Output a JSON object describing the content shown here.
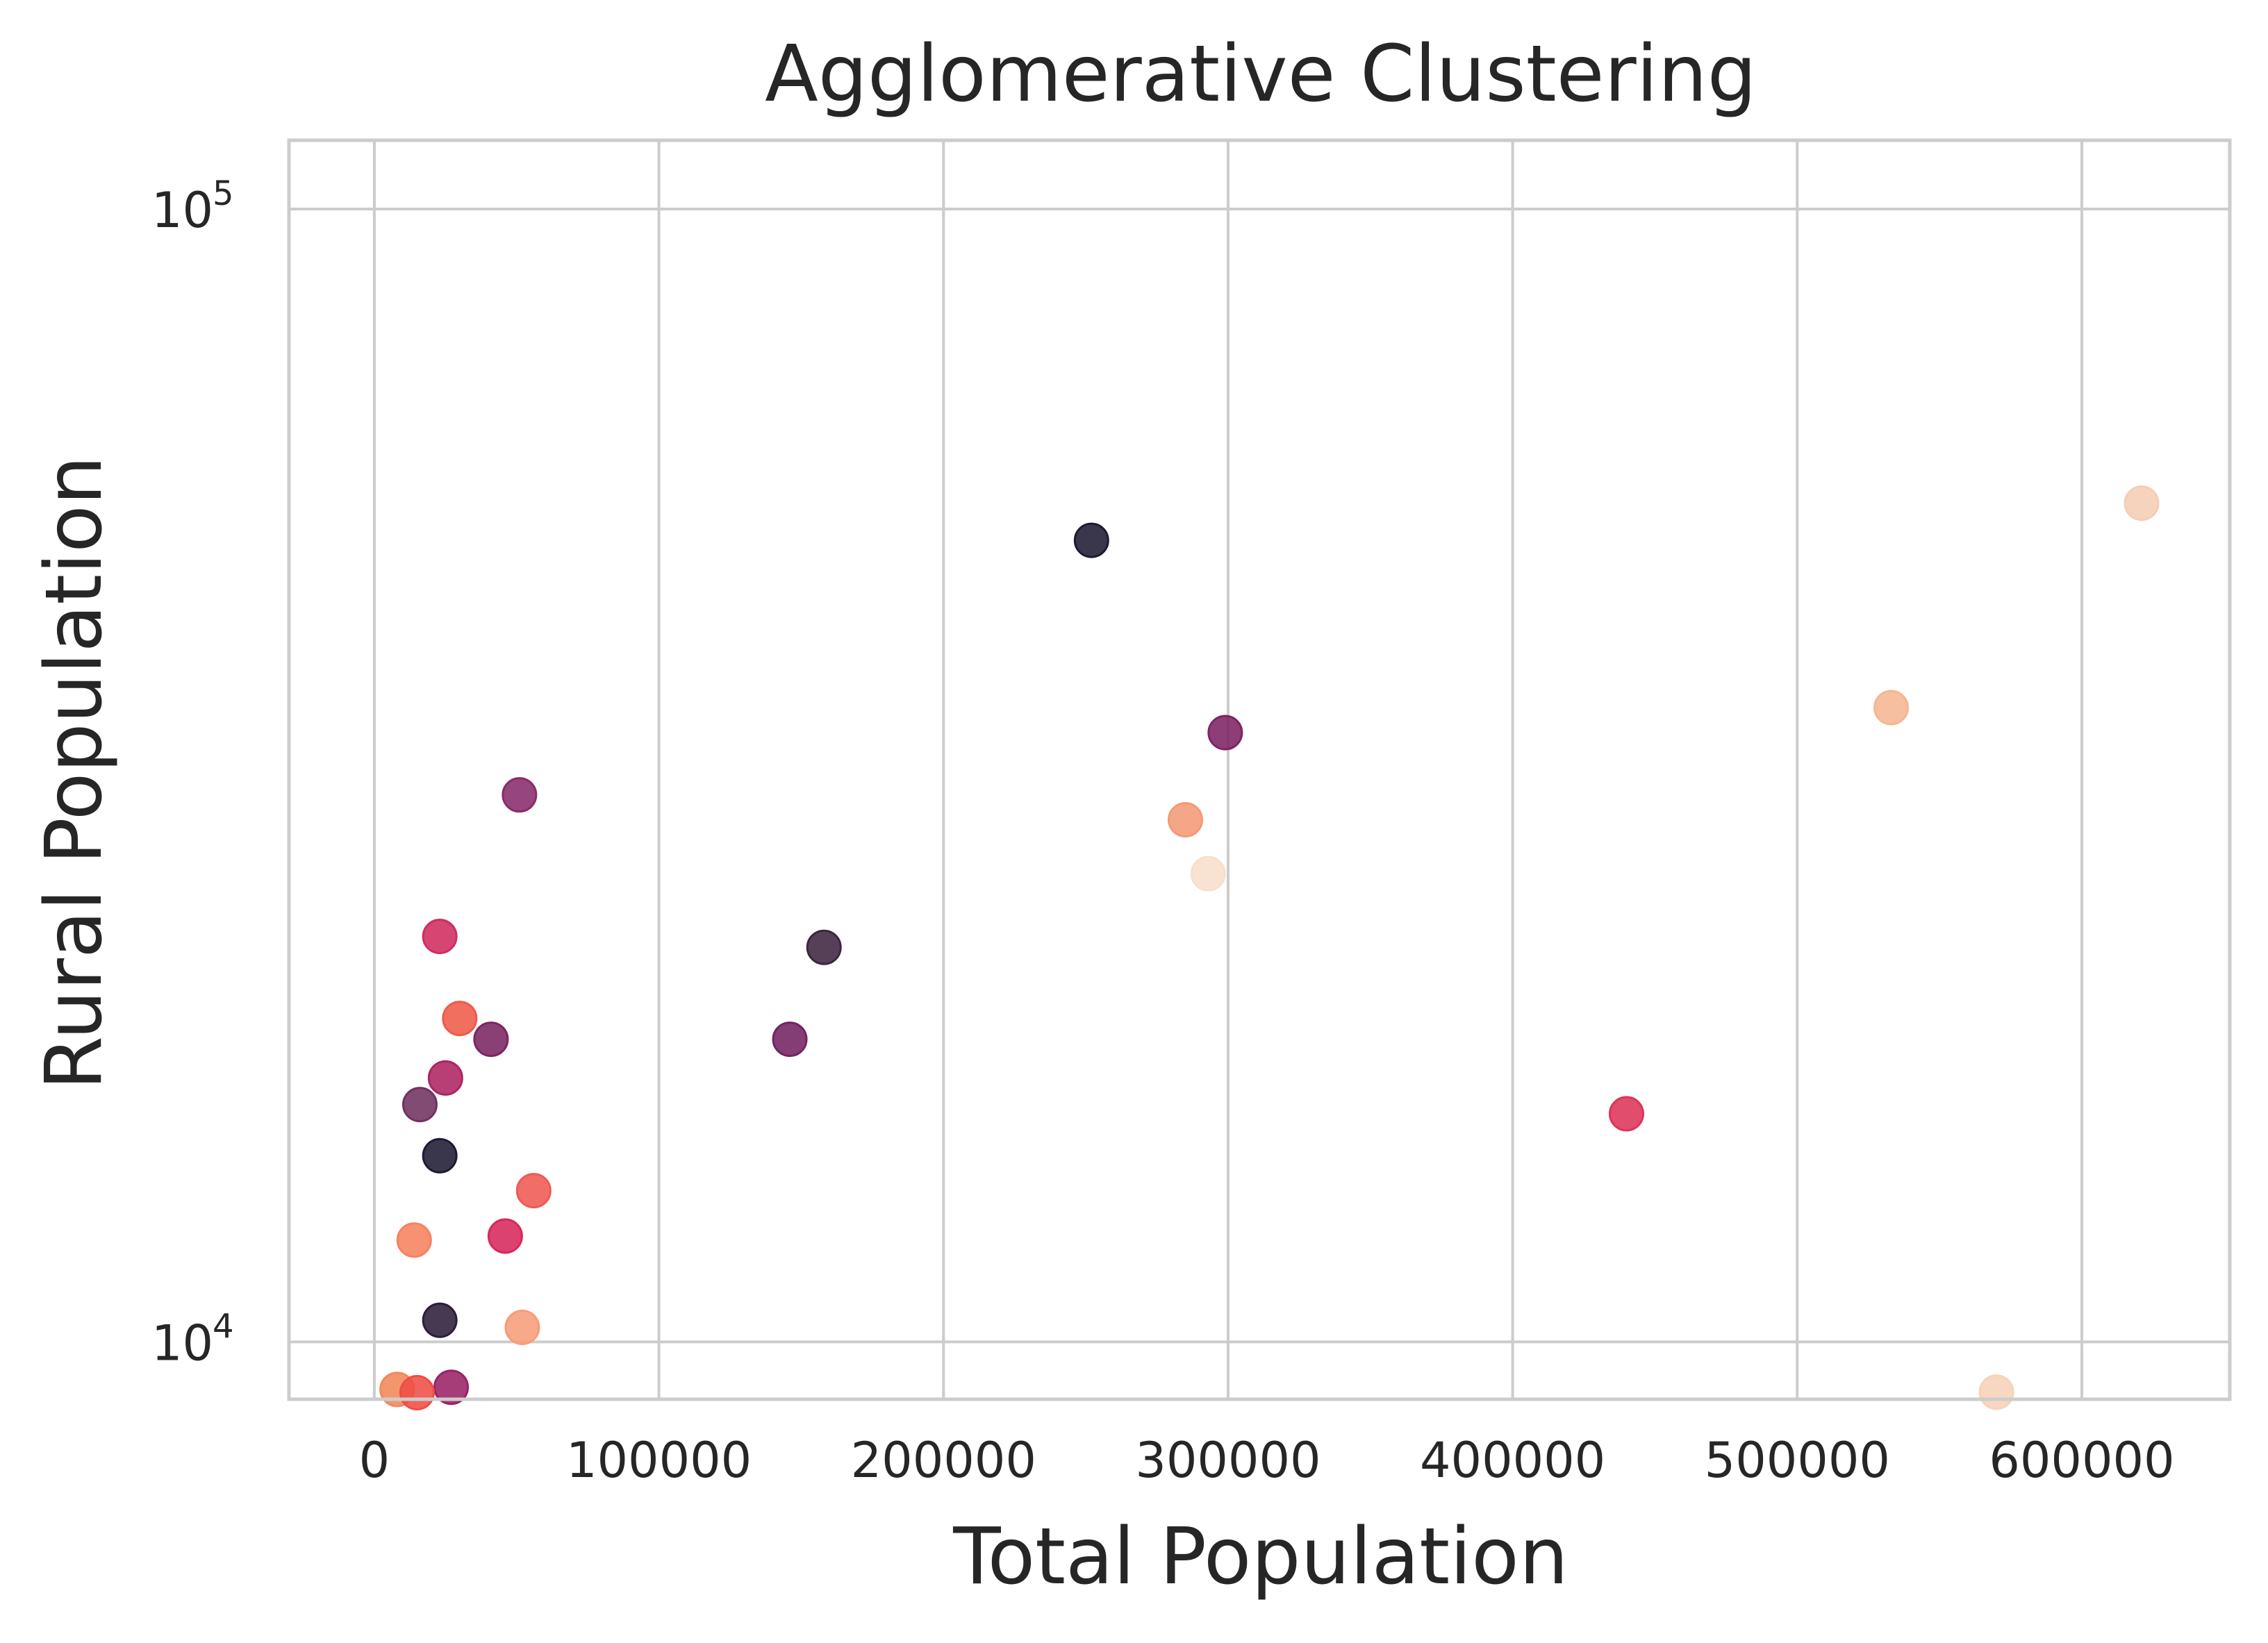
{
  "chart_data": {
    "type": "scatter",
    "title": "Agglomerative Clustering",
    "xlabel": "Total Population",
    "ylabel": "Rural Population",
    "xlim": [
      -30000,
      652000
    ],
    "ylim": [
      8900,
      115000
    ],
    "yscale": "log",
    "grid": true,
    "legend": "none",
    "xticks": [
      {
        "value": 0,
        "label": "0"
      },
      {
        "value": 100000,
        "label": "100000"
      },
      {
        "value": 200000,
        "label": "200000"
      },
      {
        "value": 300000,
        "label": "300000"
      },
      {
        "value": 400000,
        "label": "400000"
      },
      {
        "value": 500000,
        "label": "500000"
      },
      {
        "value": 600000,
        "label": "600000"
      }
    ],
    "yticks": [
      {
        "value": 10000,
        "base": "10",
        "exp": "4"
      },
      {
        "value": 100000,
        "base": "10",
        "exp": "5"
      }
    ],
    "points": [
      {
        "x": 252000,
        "y": 51000,
        "color": "#1f1a33"
      },
      {
        "x": 621000,
        "y": 55000,
        "color": "#f5cdb4"
      },
      {
        "x": 533000,
        "y": 36300,
        "color": "#f5b692"
      },
      {
        "x": 299000,
        "y": 34500,
        "color": "#7e2364"
      },
      {
        "x": 51000,
        "y": 30400,
        "color": "#882c6a"
      },
      {
        "x": 285000,
        "y": 28900,
        "color": "#f39a76"
      },
      {
        "x": 293000,
        "y": 25900,
        "color": "#f7dfcc"
      },
      {
        "x": 158000,
        "y": 22300,
        "color": "#3d2541"
      },
      {
        "x": 23000,
        "y": 22800,
        "color": "#cf2e5e"
      },
      {
        "x": 30000,
        "y": 19300,
        "color": "#ef5b48"
      },
      {
        "x": 146000,
        "y": 18500,
        "color": "#742262"
      },
      {
        "x": 41000,
        "y": 18500,
        "color": "#7b2562"
      },
      {
        "x": 25000,
        "y": 17100,
        "color": "#ae2463"
      },
      {
        "x": 440000,
        "y": 15900,
        "color": "#dd3458"
      },
      {
        "x": 16000,
        "y": 16200,
        "color": "#6f3261"
      },
      {
        "x": 23000,
        "y": 14600,
        "color": "#1f1a33"
      },
      {
        "x": 56000,
        "y": 13600,
        "color": "#ee5a52"
      },
      {
        "x": 46000,
        "y": 12400,
        "color": "#d7285b"
      },
      {
        "x": 14000,
        "y": 12300,
        "color": "#f6825f"
      },
      {
        "x": 23000,
        "y": 10450,
        "color": "#2b1f3a"
      },
      {
        "x": 52000,
        "y": 10300,
        "color": "#f69d7a"
      },
      {
        "x": 27000,
        "y": 9120,
        "color": "#9a2266"
      },
      {
        "x": 8000,
        "y": 9080,
        "color": "#f38759"
      },
      {
        "x": 15000,
        "y": 9020,
        "color": "#ef4d45"
      },
      {
        "x": 570000,
        "y": 9030,
        "color": "#f7d2b8"
      }
    ]
  }
}
